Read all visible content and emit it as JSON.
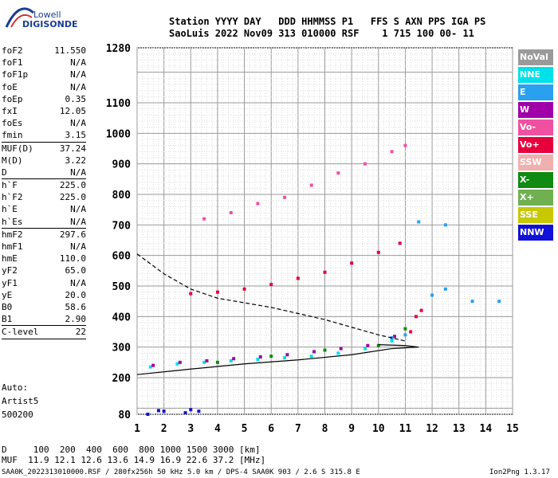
{
  "logo": {
    "top": "Lowell",
    "bottom": "DIGISONDE"
  },
  "header": {
    "line1": "Station YYYY DAY   DDD HHMMSS P1   FFS S AXN PPS IGA PS",
    "line2": "SaoLuis 2022 Nov09 313 010000 RSF    1 715 100 00- 11"
  },
  "params": [
    {
      "label": "foF2",
      "value": "11.550"
    },
    {
      "label": "foF1",
      "value": "N/A"
    },
    {
      "label": "foF1p",
      "value": "N/A"
    },
    {
      "label": "foE",
      "value": "N/A"
    },
    {
      "label": "foEp",
      "value": "0.35"
    },
    {
      "label": "fxI",
      "value": "12.05"
    },
    {
      "label": "foEs",
      "value": "N/A"
    },
    {
      "label": "fmin",
      "value": "3.15",
      "sep": true
    },
    {
      "label": "MUF(D)",
      "value": "37.24"
    },
    {
      "label": "M(D)",
      "value": "3.22"
    },
    {
      "label": "D",
      "value": "N/A",
      "sep": true
    },
    {
      "label": "h`F",
      "value": "225.0"
    },
    {
      "label": "h`F2",
      "value": "225.0"
    },
    {
      "label": "h`E",
      "value": "N/A"
    },
    {
      "label": "h`Es",
      "value": "N/A",
      "sep": true
    },
    {
      "label": "hmF2",
      "value": "297.6"
    },
    {
      "label": "hmF1",
      "value": "N/A"
    },
    {
      "label": "hmE",
      "value": "110.0"
    },
    {
      "label": "yF2",
      "value": "65.0"
    },
    {
      "label": "yF1",
      "value": "N/A"
    },
    {
      "label": "yE",
      "value": "20.0"
    },
    {
      "label": "B0",
      "value": "58.6"
    },
    {
      "label": "B1",
      "value": "2.90",
      "sep": true
    },
    {
      "label": "C-level",
      "value": "22",
      "sep": true
    }
  ],
  "notes": [
    "Auto:",
    "Artist5",
    "500200"
  ],
  "legend": [
    {
      "label": "NoVal",
      "color": "#9a9a9a"
    },
    {
      "label": "NNE",
      "color": "#00e0e8"
    },
    {
      "label": "E",
      "color": "#2aa0f0"
    },
    {
      "label": "W",
      "color": "#a000a8"
    },
    {
      "label": "Vo-",
      "color": "#f050a0"
    },
    {
      "label": "Vo+",
      "color": "#e8003c"
    },
    {
      "label": "SSW",
      "color": "#f0b0b0"
    },
    {
      "label": "X-",
      "color": "#108a10"
    },
    {
      "label": "X+",
      "color": "#70b050"
    },
    {
      "label": "SSE",
      "color": "#c8c800"
    },
    {
      "label": "NNW",
      "color": "#1010d8"
    }
  ],
  "footer": {
    "d_row": "D     100  200  400  600  800 1000 1500 3000 [km]",
    "muf_row": "MUF  11.9 12.1 12.6 13.6 14.9 16.9 22.6 37.2 [MHz]",
    "file_row": "SAA0K_2022313010000.RSF / 280fx256h 50 kHz 5.0 km / DPS-4 SAA0K 903 / 2.6 S 315.8 E",
    "version": "Ion2Png 1.3.17"
  },
  "chart_data": {
    "type": "scatter",
    "x_ticks": [
      1,
      2,
      3,
      4,
      5,
      6,
      7,
      8,
      9,
      10,
      11,
      12,
      13,
      14,
      15
    ],
    "y_ticks": [
      80,
      200,
      300,
      400,
      500,
      600,
      700,
      800,
      900,
      1000,
      1100,
      1280
    ],
    "xlim": [
      1,
      15
    ],
    "ylim": [
      80,
      1280
    ],
    "grid": true,
    "series": [
      {
        "color": "#1010d8",
        "points": [
          [
            1.4,
            80
          ],
          [
            2.0,
            90
          ],
          [
            2.8,
            85
          ],
          [
            3.3,
            90
          ],
          [
            1.8,
            92
          ],
          [
            3.0,
            95
          ]
        ]
      },
      {
        "color": "#00e0e8",
        "points": [
          [
            1.5,
            235
          ],
          [
            2.5,
            245
          ],
          [
            3.5,
            250
          ],
          [
            4.5,
            255
          ],
          [
            5.5,
            260
          ],
          [
            6.5,
            265
          ],
          [
            7.5,
            270
          ],
          [
            8.5,
            280
          ],
          [
            9.5,
            295
          ],
          [
            10.5,
            320
          ]
        ]
      },
      {
        "color": "#a000a8",
        "points": [
          [
            1.6,
            240
          ],
          [
            2.6,
            250
          ],
          [
            3.6,
            255
          ],
          [
            4.6,
            262
          ],
          [
            5.6,
            268
          ],
          [
            6.6,
            275
          ],
          [
            7.6,
            285
          ],
          [
            8.6,
            295
          ],
          [
            9.6,
            305
          ],
          [
            10.6,
            335
          ]
        ]
      },
      {
        "color": "#e8003c",
        "points": [
          [
            3.0,
            475
          ],
          [
            4.0,
            480
          ],
          [
            5.0,
            490
          ],
          [
            6.0,
            505
          ],
          [
            7.0,
            525
          ],
          [
            8.0,
            545
          ],
          [
            9.0,
            575
          ],
          [
            10.0,
            610
          ],
          [
            10.8,
            640
          ],
          [
            11.2,
            350
          ],
          [
            11.4,
            400
          ],
          [
            11.6,
            420
          ]
        ]
      },
      {
        "color": "#f050a0",
        "points": [
          [
            3.5,
            720
          ],
          [
            4.5,
            740
          ],
          [
            5.5,
            770
          ],
          [
            6.5,
            790
          ],
          [
            7.5,
            830
          ],
          [
            8.5,
            870
          ],
          [
            9.5,
            900
          ],
          [
            10.5,
            940
          ],
          [
            11.0,
            960
          ]
        ]
      },
      {
        "color": "#108a10",
        "points": [
          [
            4.0,
            250
          ],
          [
            6.0,
            270
          ],
          [
            8.0,
            290
          ],
          [
            10.0,
            305
          ],
          [
            10.5,
            330
          ],
          [
            11.0,
            360
          ]
        ]
      },
      {
        "color": "#2aa0f0",
        "points": [
          [
            10.5,
            330
          ],
          [
            11.0,
            340
          ],
          [
            12.0,
            470
          ],
          [
            12.5,
            490
          ],
          [
            13.5,
            450
          ],
          [
            14.5,
            450
          ],
          [
            12.5,
            700
          ],
          [
            11.5,
            710
          ]
        ]
      }
    ],
    "curves": [
      {
        "name": "",
        "style": "dashed",
        "color": "#000",
        "x": [
          1.0,
          2.0,
          3.0,
          4.0,
          5.0,
          6.0,
          7.0,
          8.0,
          9.0,
          10.0,
          11.0
        ],
        "y": [
          605,
          540,
          490,
          460,
          445,
          430,
          410,
          390,
          365,
          340,
          320
        ]
      },
      {
        "name": "",
        "style": "solid",
        "color": "#000",
        "x": [
          1.0,
          3.0,
          5.0,
          7.0,
          9.0,
          10.5,
          11.5,
          11.0,
          10.0
        ],
        "y": [
          210,
          228,
          245,
          258,
          275,
          295,
          300,
          305,
          308
        ]
      }
    ]
  }
}
